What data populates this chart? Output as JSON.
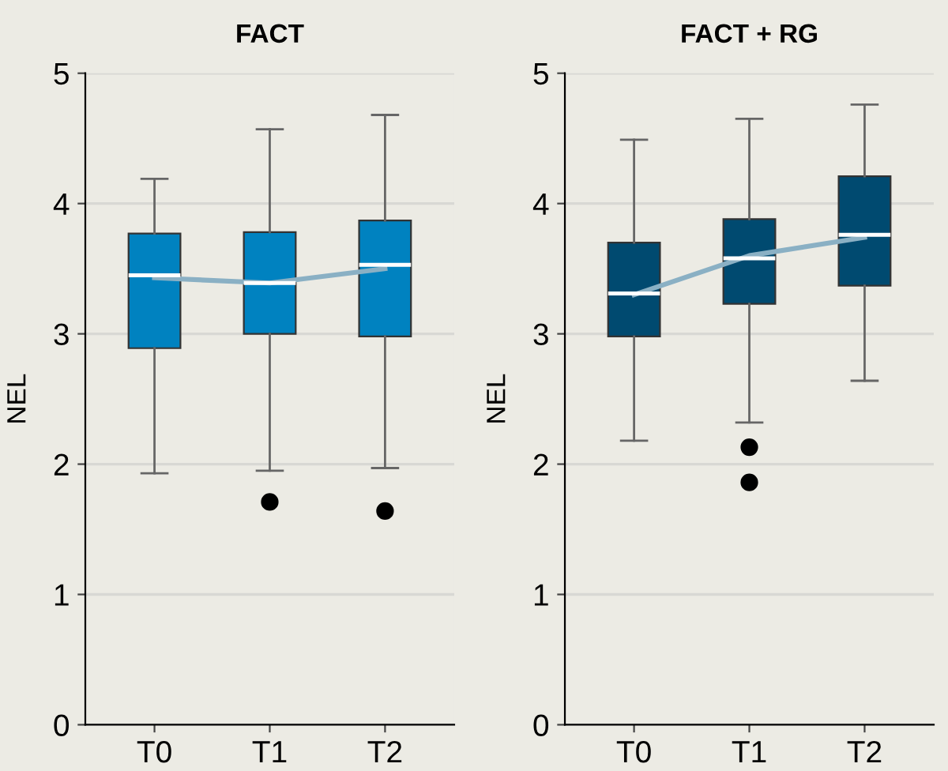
{
  "chart_data": [
    {
      "type": "box",
      "title": "FACT",
      "ylabel": "NEL",
      "categories": [
        "T0",
        "T1",
        "T2"
      ],
      "ylim": [
        0,
        5
      ],
      "yticks": [
        0,
        1,
        2,
        3,
        4,
        5
      ],
      "grid": "y",
      "legend": false,
      "series": [
        {
          "type": "box",
          "color": "#0082c0",
          "boxes": [
            {
              "low": 1.93,
              "q1": 2.89,
              "median": 3.45,
              "q3": 3.77,
              "high": 4.19
            },
            {
              "low": 1.95,
              "q1": 3.0,
              "median": 3.39,
              "q3": 3.78,
              "high": 4.57,
              "outliers": [
                1.71
              ]
            },
            {
              "low": 1.97,
              "q1": 2.98,
              "median": 3.53,
              "q3": 3.87,
              "high": 4.68,
              "outliers": [
                1.64
              ]
            }
          ]
        },
        {
          "type": "line",
          "color": "#8ab0c4",
          "values": [
            3.43,
            3.39,
            3.5
          ]
        }
      ]
    },
    {
      "type": "box",
      "title": "FACT + RG",
      "ylabel": "NEL",
      "categories": [
        "T0",
        "T1",
        "T2"
      ],
      "ylim": [
        0,
        5
      ],
      "yticks": [
        0,
        1,
        2,
        3,
        4,
        5
      ],
      "grid": "y",
      "legend": false,
      "series": [
        {
          "type": "box",
          "color": "#004a70",
          "boxes": [
            {
              "low": 2.18,
              "q1": 2.98,
              "median": 3.31,
              "q3": 3.7,
              "high": 4.49
            },
            {
              "low": 2.32,
              "q1": 3.23,
              "median": 3.58,
              "q3": 3.88,
              "high": 4.65,
              "outliers": [
                2.13,
                1.86
              ]
            },
            {
              "low": 2.64,
              "q1": 3.37,
              "median": 3.76,
              "q3": 4.21,
              "high": 4.76
            }
          ]
        },
        {
          "type": "line",
          "color": "#8ab0c4",
          "values": [
            3.3,
            3.6,
            3.74
          ]
        }
      ]
    }
  ]
}
